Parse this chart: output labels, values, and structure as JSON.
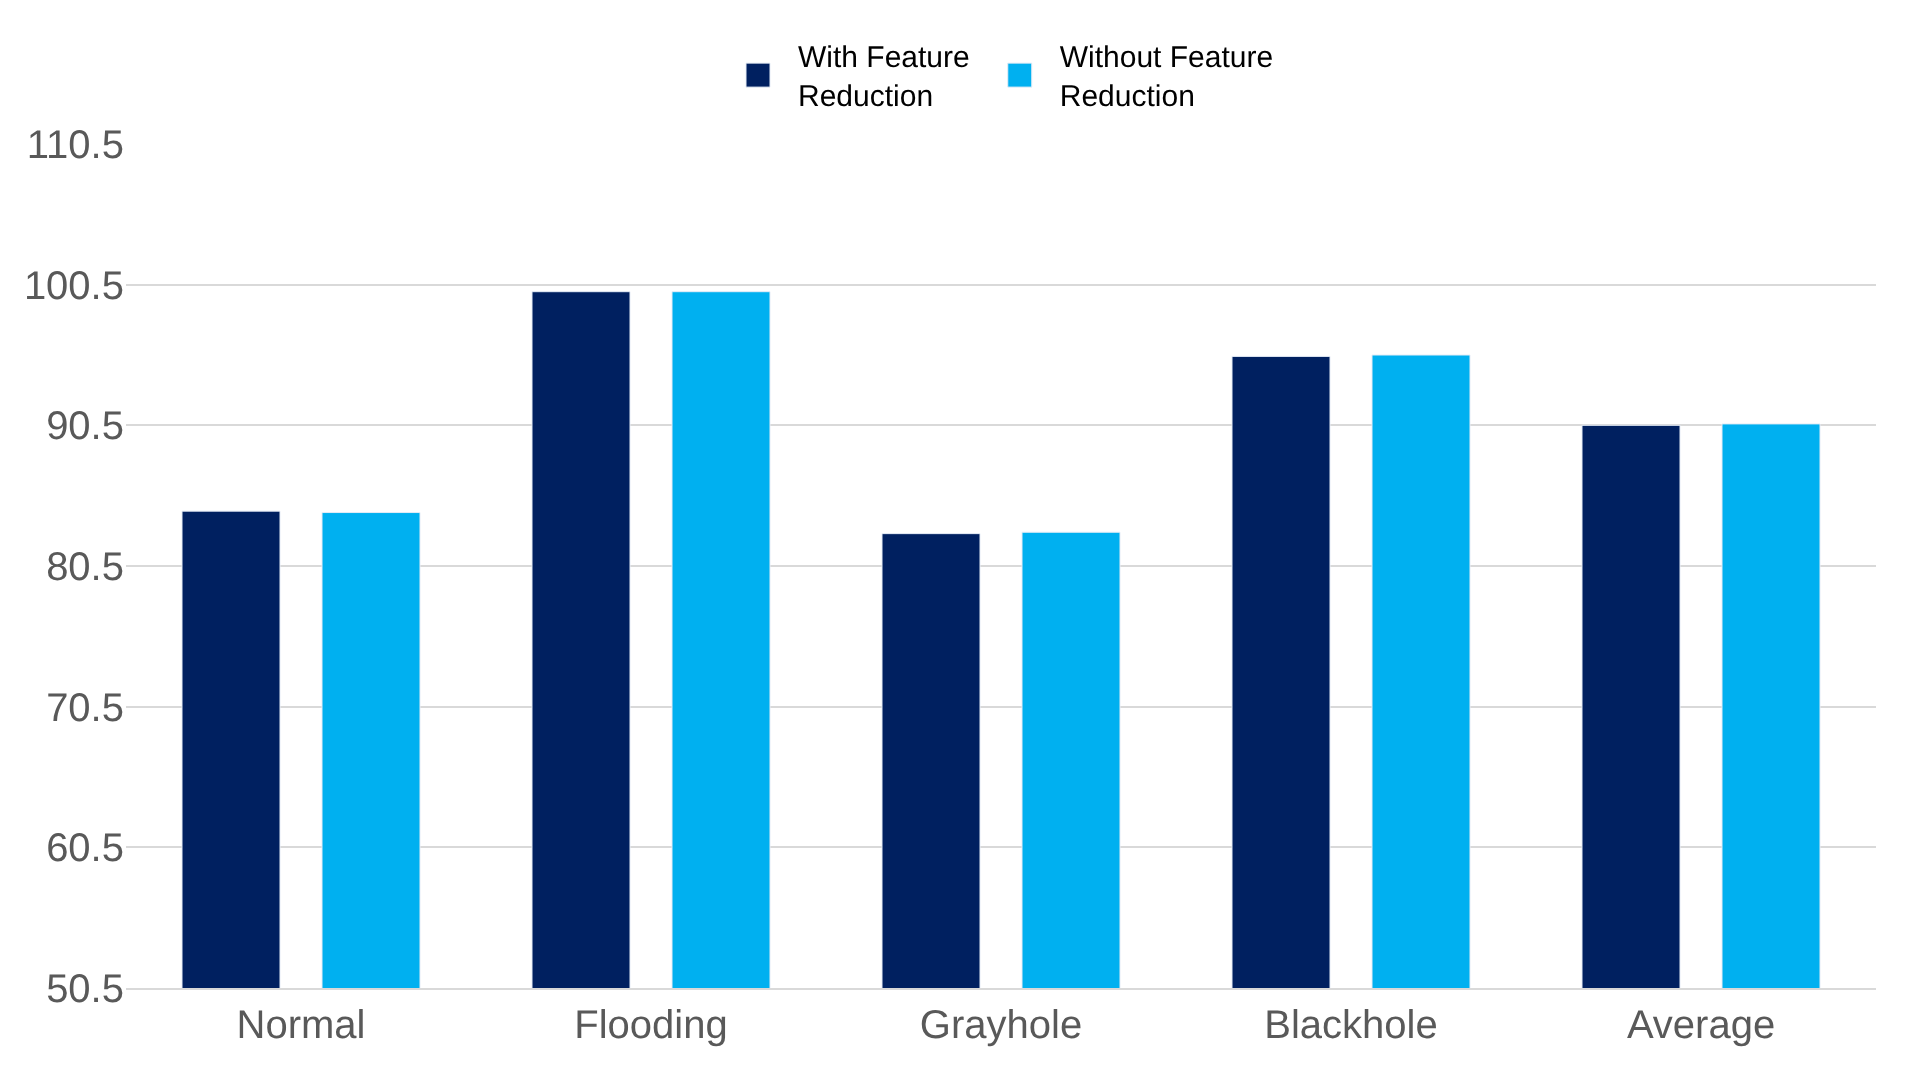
{
  "chart_data": {
    "type": "bar",
    "categories": [
      "Normal",
      "Flooding",
      "Grayhole",
      "Blackhole",
      "Average"
    ],
    "series": [
      {
        "name": "With Feature Reduction",
        "color": "#002060",
        "values": [
          84.4,
          100.0,
          82.8,
          95.4,
          90.5
        ]
      },
      {
        "name": "Without Feature Reduction",
        "color": "#00b0f0",
        "values": [
          84.3,
          100.0,
          82.9,
          95.5,
          90.6
        ]
      }
    ],
    "ylim": [
      50.5,
      110.5
    ],
    "yticks": [
      50.5,
      60.5,
      70.5,
      80.5,
      90.5,
      100.5,
      110.5
    ],
    "grid": "y",
    "legend": "top"
  }
}
